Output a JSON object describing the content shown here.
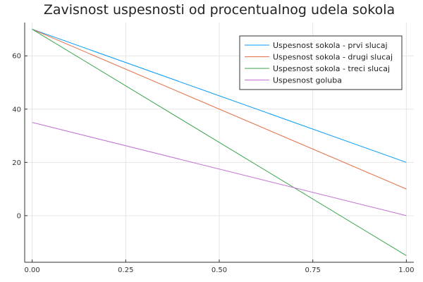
{
  "chart_data": {
    "type": "line",
    "title": "Zavisnost uspesnosti od procentualnog udela sokola",
    "xlabel": "",
    "ylabel": "",
    "xlim": [
      -0.02,
      1.02
    ],
    "ylim": [
      -17.5,
      72.5
    ],
    "x_ticks": [
      0.0,
      0.25,
      0.5,
      0.75,
      1.0
    ],
    "x_tick_labels": [
      "0.00",
      "0.25",
      "0.50",
      "0.75",
      "1.00"
    ],
    "y_ticks": [
      0,
      20,
      40,
      60
    ],
    "y_tick_labels": [
      "0",
      "20",
      "40",
      "60"
    ],
    "grid": true,
    "legend_position": "top-right",
    "series": [
      {
        "name": "Uspesnost sokola - prvi slucaj",
        "color": "#009af9",
        "x": [
          0,
          1
        ],
        "y": [
          70,
          20
        ]
      },
      {
        "name": "Uspesnost sokola - drugi slucaj",
        "color": "#e26f46",
        "x": [
          0,
          1
        ],
        "y": [
          70,
          10
        ]
      },
      {
        "name": "Uspesnost sokola - treci slucaj",
        "color": "#3da44d",
        "x": [
          0,
          1
        ],
        "y": [
          70,
          -15
        ]
      },
      {
        "name": "Uspesnost goluba",
        "color": "#c271d2",
        "x": [
          0,
          1
        ],
        "y": [
          35,
          0
        ]
      }
    ]
  }
}
